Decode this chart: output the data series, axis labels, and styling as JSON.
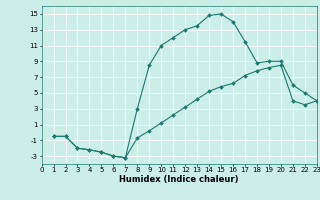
{
  "xlabel": "Humidex (Indice chaleur)",
  "bg_color": "#cceee8",
  "grid_color": "#ffffff",
  "line_color": "#1a7a6e",
  "line1_x": [
    1,
    2,
    3,
    4,
    5,
    6,
    7,
    8,
    9,
    10,
    11,
    12,
    13,
    14,
    15,
    16,
    17,
    18,
    19,
    20,
    21,
    22,
    23
  ],
  "line1_y": [
    -0.5,
    -0.5,
    -2.0,
    -2.2,
    -2.5,
    -3.0,
    -3.2,
    3.0,
    8.5,
    11.0,
    12.0,
    13.0,
    13.5,
    14.8,
    15.0,
    14.0,
    11.5,
    8.8,
    9.0,
    9.0,
    6.0,
    5.0,
    4.0
  ],
  "line2_x": [
    1,
    2,
    3,
    4,
    5,
    6,
    7,
    8,
    9,
    10,
    11,
    12,
    13,
    14,
    15,
    16,
    17,
    18,
    19,
    20,
    21,
    22,
    23
  ],
  "line2_y": [
    -0.5,
    -0.5,
    -2.0,
    -2.2,
    -2.5,
    -3.0,
    -3.2,
    -0.7,
    0.2,
    1.2,
    2.2,
    3.2,
    4.2,
    5.2,
    5.8,
    6.2,
    7.2,
    7.8,
    8.2,
    8.5,
    4.0,
    3.5,
    4.0
  ],
  "xlim": [
    0,
    23
  ],
  "ylim": [
    -4,
    16
  ],
  "yticks": [
    -3,
    -1,
    1,
    3,
    5,
    7,
    9,
    11,
    13,
    15
  ],
  "xticks": [
    0,
    1,
    2,
    3,
    4,
    5,
    6,
    7,
    8,
    9,
    10,
    11,
    12,
    13,
    14,
    15,
    16,
    17,
    18,
    19,
    20,
    21,
    22,
    23
  ],
  "marker": "D",
  "markersize": 2.0,
  "linewidth": 0.8,
  "tick_fontsize": 5.0,
  "xlabel_fontsize": 6.0
}
